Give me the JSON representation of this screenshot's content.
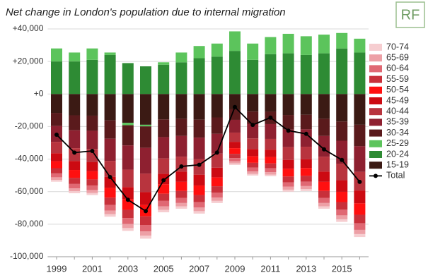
{
  "chart_data": {
    "type": "bar",
    "stacked": true,
    "title": "Net change in London's population due to internal migration",
    "logo": "RF",
    "categories": [
      "1999",
      null,
      "2001",
      null,
      "2003",
      null,
      "2005",
      null,
      "2007",
      null,
      "2009",
      null,
      "2011",
      null,
      "2013",
      null,
      "2015",
      null
    ],
    "ylim": [
      -100000,
      40000
    ],
    "yticks": [
      {
        "value": 40000,
        "label": "+40,000"
      },
      {
        "value": 20000,
        "label": "+20,000"
      },
      {
        "value": 0,
        "label": "+0"
      },
      {
        "value": -20000,
        "label": "-20,000"
      },
      {
        "value": -40000,
        "label": "-40,000"
      },
      {
        "value": -60000,
        "label": "-60,000"
      },
      {
        "value": -80000,
        "label": "-80,000"
      },
      {
        "value": -100000,
        "label": "-100,000"
      }
    ],
    "grid": true,
    "legend": "right",
    "series": [
      {
        "name": "15-19",
        "color": "#3b1a14",
        "values": [
          -11600,
          -13100,
          -13300,
          -16200,
          -17700,
          -18900,
          -15600,
          -15200,
          -15800,
          -14400,
          -9400,
          -10800,
          -10900,
          -12900,
          -12800,
          -15200,
          -16900,
          -18900
        ]
      },
      {
        "name": "20-24",
        "color": "#2e8b34",
        "values": [
          20000,
          20000,
          21000,
          24000,
          19000,
          17000,
          18000,
          19500,
          22000,
          23000,
          26500,
          21000,
          24500,
          25000,
          24000,
          25000,
          28000,
          25500
        ]
      },
      {
        "name": "25-29",
        "color": "#5cc45c",
        "values": [
          8000,
          5500,
          7000,
          1500,
          -1500,
          -1000,
          1500,
          6000,
          7500,
          8000,
          12000,
          10000,
          10500,
          12000,
          11500,
          11500,
          9500,
          8500
        ]
      },
      {
        "name": "30-34",
        "color": "#5a1a1c",
        "values": [
          -8100,
          -9200,
          -9300,
          -11300,
          -12400,
          -13200,
          -10900,
          -10600,
          -11000,
          -10100,
          -6500,
          -7500,
          -7600,
          -9000,
          -8900,
          -10600,
          -11800,
          -13200
        ]
      },
      {
        "name": "35-39",
        "color": "#8e2030",
        "values": [
          -9700,
          -11000,
          -11200,
          -13600,
          -14900,
          -15800,
          -13100,
          -12700,
          -13200,
          -12100,
          -7800,
          -9000,
          -9100,
          -10800,
          -10700,
          -12700,
          -14100,
          -15800
        ]
      },
      {
        "name": "40-44",
        "color": "#b8343e",
        "values": [
          -7000,
          -7900,
          -8100,
          -9800,
          -10700,
          -11400,
          -9400,
          -9200,
          -9600,
          -8700,
          -5700,
          -6500,
          -6600,
          -7800,
          -7700,
          -9200,
          -10200,
          -11400
        ]
      },
      {
        "name": "45-49",
        "color": "#cc0a12",
        "values": [
          -4900,
          -5500,
          -5600,
          -6800,
          -7400,
          -7900,
          -6500,
          -6300,
          -6600,
          -6000,
          -3900,
          -4500,
          -4500,
          -5400,
          -5400,
          -6300,
          -7100,
          -7900
        ]
      },
      {
        "name": "50-54",
        "color": "#ff1010",
        "values": [
          -4300,
          -4900,
          -5000,
          -6000,
          -6600,
          -7000,
          -5800,
          -5600,
          -5900,
          -5400,
          -3500,
          -4000,
          -4000,
          -4800,
          -4800,
          -5600,
          -6300,
          -7000
        ]
      },
      {
        "name": "55-59",
        "color": "#c8303a",
        "values": [
          -3200,
          -3700,
          -3700,
          -4500,
          -5000,
          -5300,
          -4400,
          -4200,
          -4400,
          -4000,
          -2600,
          -3000,
          -3000,
          -3600,
          -3600,
          -4200,
          -4700,
          -5300
        ]
      },
      {
        "name": "60-64",
        "color": "#e06873",
        "values": [
          -2400,
          -2700,
          -2800,
          -3400,
          -3700,
          -4000,
          -3300,
          -3200,
          -3300,
          -3000,
          -2000,
          -2300,
          -2300,
          -2700,
          -2700,
          -3200,
          -3500,
          -4000
        ]
      },
      {
        "name": "65-69",
        "color": "#eda0a6",
        "values": [
          -1600,
          -1800,
          -1900,
          -2300,
          -2500,
          -2600,
          -2200,
          -2100,
          -2200,
          -2000,
          -1300,
          -1500,
          -1500,
          -1800,
          -1800,
          -2100,
          -2400,
          -2600
        ]
      },
      {
        "name": "70-74",
        "color": "#f6cdd0",
        "values": [
          -1100,
          -1200,
          -1200,
          -1500,
          -1700,
          -1800,
          -1500,
          -1400,
          -1500,
          -1300,
          -900,
          -1000,
          -1000,
          -1200,
          -1200,
          -1400,
          -1600,
          -1800
        ]
      },
      {
        "name": "Total",
        "color": "#000000",
        "type": "line",
        "values": [
          -25000,
          -36000,
          -35000,
          -51000,
          -65000,
          -72000,
          -53000,
          -44500,
          -43500,
          -36000,
          -8000,
          -19000,
          -14500,
          -22500,
          -24500,
          -34000,
          -40500,
          -54000
        ]
      }
    ]
  }
}
